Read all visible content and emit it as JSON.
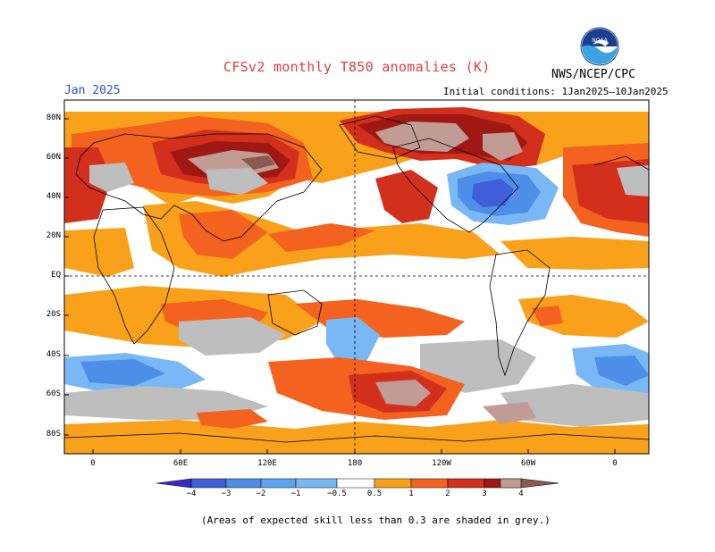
{
  "header": {
    "title": "CFSv2 monthly T850 anomalies (K)",
    "agency": "NWS/NCEP/CPC",
    "logo_text": "NOAA",
    "month": "Jan 2025",
    "initial_conditions": "Initial conditions: 1Jan2025–10Jan2025"
  },
  "map": {
    "lat_labels": [
      "80N",
      "60N",
      "40N",
      "20N",
      "EQ",
      "20S",
      "40S",
      "60S",
      "80S"
    ],
    "lon_labels": [
      "0",
      "60E",
      "120E",
      "180",
      "120W",
      "60W",
      "0"
    ]
  },
  "colorbar": {
    "labels": [
      "−4",
      "−3",
      "−2",
      "−1",
      "−0.5",
      "0.5",
      "1",
      "2",
      "3",
      "4"
    ],
    "colors": [
      "#3a2bbf",
      "#3f5ed8",
      "#4d8ee8",
      "#7ab8f5",
      "#ffffff",
      "#f9a11b",
      "#f4621f",
      "#d22f1d",
      "#a01814",
      "#c09c95",
      "#8a5a50"
    ]
  },
  "footnote": "(Areas of expected skill less than 0.3 are shaded in grey.)"
}
